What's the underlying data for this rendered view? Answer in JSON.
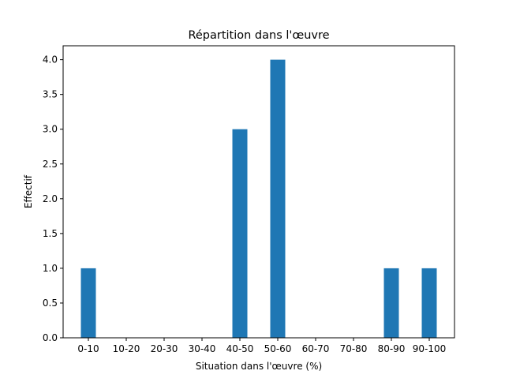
{
  "chart_data": {
    "type": "bar",
    "title": "Répartition dans l'œuvre",
    "xlabel": "Situation dans l'œuvre (%)",
    "ylabel": "Effectif",
    "categories": [
      "0-10",
      "10-20",
      "20-30",
      "30-40",
      "40-50",
      "50-60",
      "60-70",
      "70-80",
      "80-90",
      "90-100"
    ],
    "values": [
      1,
      0,
      0,
      0,
      3,
      4,
      0,
      0,
      1,
      1
    ],
    "ylim": [
      0,
      4.2
    ],
    "yticks": [
      "0.0",
      "0.5",
      "1.0",
      "1.5",
      "2.0",
      "2.5",
      "3.0",
      "3.5",
      "4.0"
    ],
    "bar_color": "#1f77b4",
    "grid": false,
    "legend": "none"
  }
}
